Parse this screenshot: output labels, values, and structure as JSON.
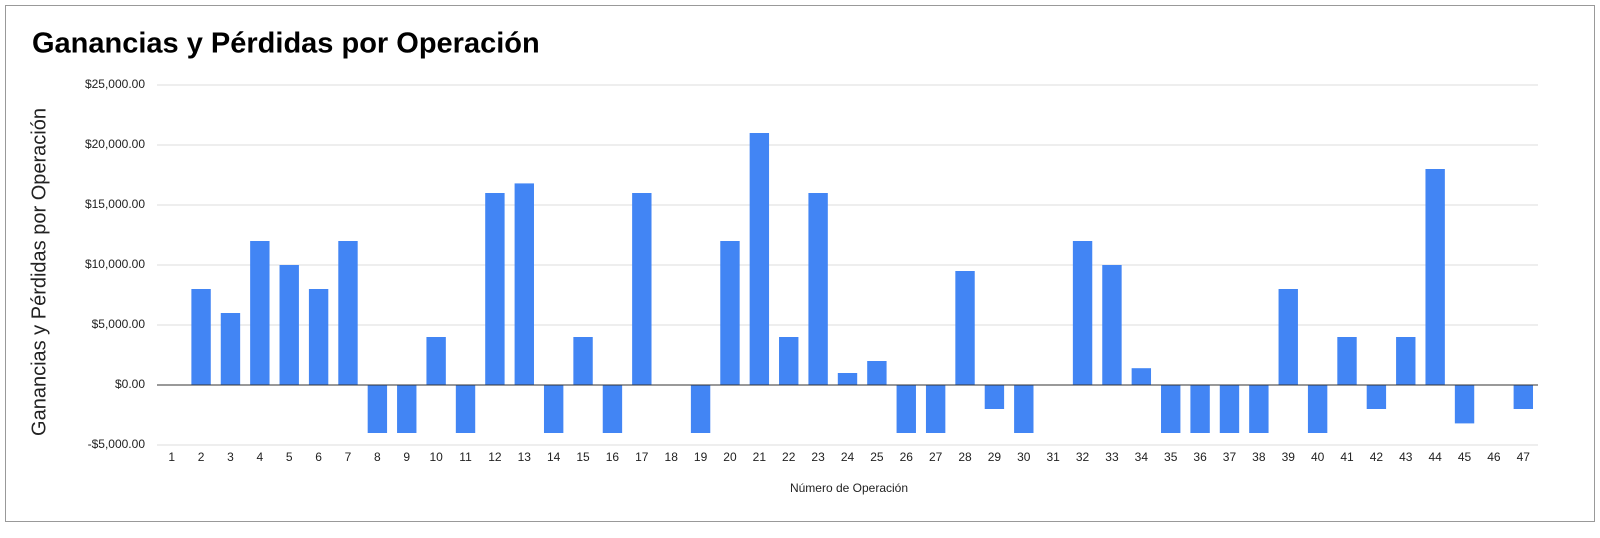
{
  "chart_data": {
    "type": "bar",
    "title": "Ganancias y Pérdidas por Operación",
    "x_label": "Número de Operación",
    "y_label": "Ganancias y Pérdidas por Operación",
    "categories": [
      "1",
      "2",
      "3",
      "4",
      "5",
      "6",
      "7",
      "8",
      "9",
      "10",
      "11",
      "12",
      "13",
      "14",
      "15",
      "16",
      "17",
      "18",
      "19",
      "20",
      "21",
      "22",
      "23",
      "24",
      "25",
      "26",
      "27",
      "28",
      "29",
      "30",
      "31",
      "32",
      "33",
      "34",
      "35",
      "36",
      "37",
      "38",
      "39",
      "40",
      "41",
      "42",
      "43",
      "44",
      "45",
      "46",
      "47"
    ],
    "values": [
      0,
      8000,
      6000,
      12000,
      10000,
      8000,
      12000,
      -4000,
      -4000,
      4000,
      -4000,
      16000,
      16800,
      -4000,
      4000,
      -4000,
      16000,
      0,
      -4000,
      12000,
      21000,
      4000,
      16000,
      1000,
      2000,
      -4000,
      -4000,
      9500,
      -2000,
      -4000,
      0,
      12000,
      10000,
      1400,
      -4000,
      -4000,
      -4000,
      -4000,
      8000,
      -4000,
      4000,
      -2000,
      4000,
      18000,
      -3200,
      0,
      -2000
    ],
    "color": "#4285f4",
    "ylim": [
      -5000,
      25000
    ],
    "yticks": [
      {
        "value": -5000,
        "label": "-$5,000.00"
      },
      {
        "value": 0,
        "label": "$0.00"
      },
      {
        "value": 5000,
        "label": "$5,000.00"
      },
      {
        "value": 10000,
        "label": "$10,000.00"
      },
      {
        "value": 15000,
        "label": "$15,000.00"
      },
      {
        "value": 20000,
        "label": "$20,000.00"
      },
      {
        "value": 25000,
        "label": "$25,000.00"
      }
    ],
    "grid": true
  }
}
